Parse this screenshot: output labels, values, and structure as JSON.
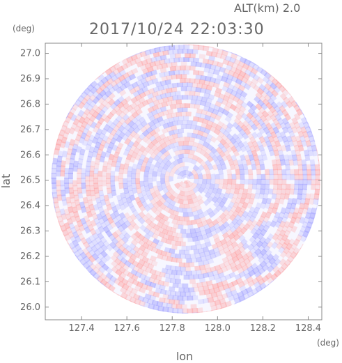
{
  "chart_data": {
    "type": "heatmap",
    "title": "2017/10/24 22:03:30",
    "altitude_label": "ALT(km) 2.0",
    "xlabel": "lon",
    "ylabel": "lat",
    "x_unit": "(deg)",
    "y_unit": "(deg)",
    "xlim": [
      127.24,
      128.46
    ],
    "ylim": [
      25.95,
      27.04
    ],
    "xticks": [
      127.4,
      127.6,
      127.8,
      128.0,
      128.2,
      128.4
    ],
    "xtick_labels": [
      "127.4",
      "127.6",
      "127.8",
      "128.0",
      "128.2",
      "128.4"
    ],
    "yticks": [
      26.0,
      26.1,
      26.2,
      26.3,
      26.4,
      26.5,
      26.6,
      26.7,
      26.8,
      26.9,
      27.0
    ],
    "ytick_labels": [
      "26.0",
      "26.1",
      "26.2",
      "26.3",
      "26.4",
      "26.5",
      "26.6",
      "26.7",
      "26.8",
      "26.9",
      "27.0"
    ],
    "radar_center": {
      "lon": 127.86,
      "lat": 26.505
    },
    "radar_radius_deg_lon": 0.595,
    "radar_radius_deg_lat": 0.535,
    "grid": false,
    "colors": {
      "positive": "#ff9a9a",
      "negative": "#9a9aff",
      "background": "#ffffff",
      "axis": "#888888"
    }
  }
}
